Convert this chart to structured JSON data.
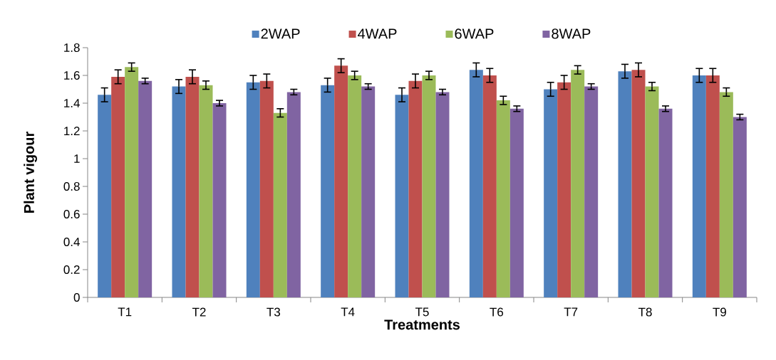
{
  "chart_data": {
    "type": "bar",
    "xlabel": "Treatments",
    "ylabel": "Plant vigour",
    "categories": [
      "T1",
      "T2",
      "T3",
      "T4",
      "T5",
      "T6",
      "T7",
      "T8",
      "T9"
    ],
    "series": [
      {
        "name": "2WAP",
        "color": "#4f81bd",
        "values": [
          1.46,
          1.52,
          1.55,
          1.53,
          1.46,
          1.64,
          1.5,
          1.63,
          1.6
        ],
        "errors": [
          0.05,
          0.05,
          0.05,
          0.05,
          0.05,
          0.05,
          0.05,
          0.05,
          0.05
        ]
      },
      {
        "name": "4WAP",
        "color": "#c0504d",
        "values": [
          1.59,
          1.59,
          1.56,
          1.67,
          1.56,
          1.6,
          1.55,
          1.64,
          1.6
        ],
        "errors": [
          0.05,
          0.05,
          0.05,
          0.05,
          0.05,
          0.05,
          0.05,
          0.05,
          0.05
        ]
      },
      {
        "name": "6WAP",
        "color": "#9bbb59",
        "values": [
          1.66,
          1.53,
          1.33,
          1.6,
          1.6,
          1.42,
          1.64,
          1.52,
          1.48
        ],
        "errors": [
          0.03,
          0.03,
          0.03,
          0.03,
          0.03,
          0.03,
          0.03,
          0.03,
          0.03
        ]
      },
      {
        "name": "8WAP",
        "color": "#8064a2",
        "values": [
          1.56,
          1.4,
          1.48,
          1.52,
          1.48,
          1.36,
          1.52,
          1.36,
          1.3
        ],
        "errors": [
          0.02,
          0.02,
          0.02,
          0.02,
          0.02,
          0.02,
          0.02,
          0.02,
          0.02
        ]
      }
    ],
    "ylim": [
      0,
      1.8
    ],
    "yticks": [
      0,
      0.2,
      0.4,
      0.6,
      0.8,
      1,
      1.2,
      1.4,
      1.6,
      1.8
    ],
    "legend": "top"
  }
}
